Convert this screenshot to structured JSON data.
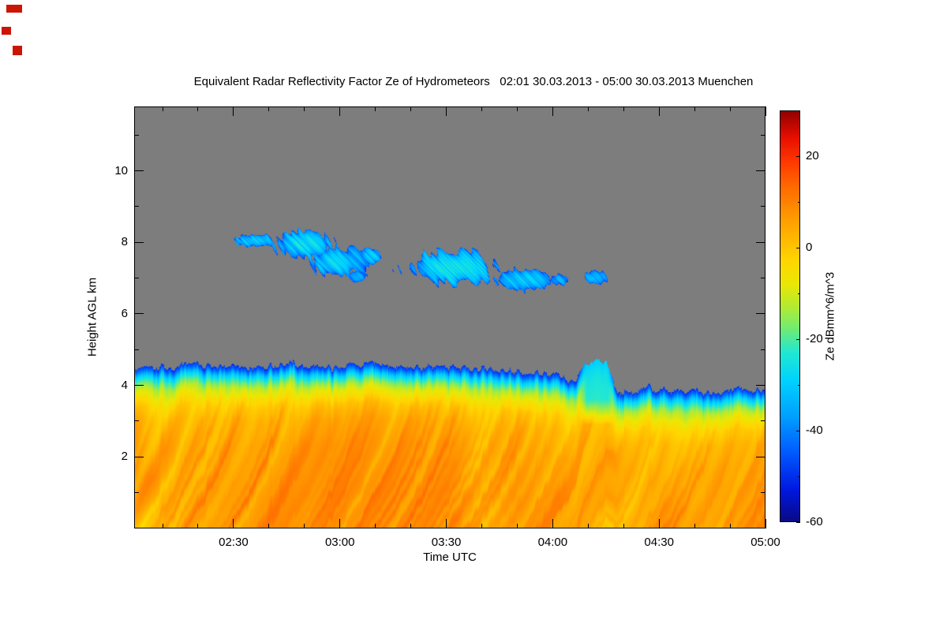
{
  "chart_data": {
    "type": "heatmap",
    "title": "Equivalent Radar Reflectivity Factor Ze of Hydrometeors   02:01 30.03.2013 - 05:00 30.03.2013 Muenchen",
    "xlabel": "Time UTC",
    "ylabel": "Height AGL km",
    "colorbar_label": "Ze dBmm^6/m^3",
    "x_range_hours": [
      2.033,
      5.0
    ],
    "y_range_km": [
      0,
      11.8
    ],
    "value_range_dB": [
      -60,
      30
    ],
    "background_color_rgb": [
      125,
      125,
      125
    ],
    "x_ticks": [
      {
        "t": 2.5,
        "label": "02:30"
      },
      {
        "t": 3.0,
        "label": "03:00"
      },
      {
        "t": 3.5,
        "label": "03:30"
      },
      {
        "t": 4.0,
        "label": "04:00"
      },
      {
        "t": 4.5,
        "label": "04:30"
      },
      {
        "t": 5.0,
        "label": "05:00"
      }
    ],
    "y_ticks": [
      2,
      4,
      6,
      8,
      10
    ],
    "y_minor_ticks": [
      1,
      3,
      5,
      7,
      9,
      11
    ],
    "colorbar_ticks": [
      20,
      0,
      -20,
      -40,
      -60
    ],
    "colorbar_minor_ticks": [
      10,
      -10,
      -30,
      -50
    ],
    "colormap": [
      [
        -60,
        [
          10,
          10,
          135
        ]
      ],
      [
        -53,
        [
          0,
          25,
          225
        ]
      ],
      [
        -45,
        [
          0,
          90,
          255
        ]
      ],
      [
        -37,
        [
          0,
          160,
          255
        ]
      ],
      [
        -29,
        [
          0,
          212,
          255
        ]
      ],
      [
        -23,
        [
          35,
          232,
          210
        ]
      ],
      [
        -18,
        [
          110,
          235,
          120
        ]
      ],
      [
        -13,
        [
          180,
          235,
          50
        ]
      ],
      [
        -8,
        [
          235,
          232,
          5
        ]
      ],
      [
        -3,
        [
          255,
          215,
          0
        ]
      ],
      [
        2,
        [
          255,
          185,
          0
        ]
      ],
      [
        8,
        [
          255,
          145,
          0
        ]
      ],
      [
        14,
        [
          255,
          100,
          0
        ]
      ],
      [
        19,
        [
          255,
          55,
          0
        ]
      ],
      [
        24,
        [
          232,
          15,
          0
        ]
      ],
      [
        30,
        [
          145,
          0,
          0
        ]
      ]
    ],
    "precip_layer": {
      "base_km": 0,
      "top_km_samples": [
        [
          2.03,
          4.45
        ],
        [
          2.1,
          4.55
        ],
        [
          2.2,
          4.5
        ],
        [
          2.3,
          4.6
        ],
        [
          2.4,
          4.5
        ],
        [
          2.5,
          4.55
        ],
        [
          2.6,
          4.5
        ],
        [
          2.7,
          4.55
        ],
        [
          2.8,
          4.6
        ],
        [
          2.9,
          4.5
        ],
        [
          3.0,
          4.5
        ],
        [
          3.05,
          4.65
        ],
        [
          3.1,
          4.55
        ],
        [
          3.2,
          4.6
        ],
        [
          3.3,
          4.55
        ],
        [
          3.4,
          4.5
        ],
        [
          3.5,
          4.55
        ],
        [
          3.6,
          4.5
        ],
        [
          3.7,
          4.45
        ],
        [
          3.8,
          4.4
        ],
        [
          3.9,
          4.35
        ],
        [
          4.0,
          4.3
        ],
        [
          4.05,
          4.2
        ],
        [
          4.1,
          4.1
        ],
        [
          4.15,
          4.55
        ],
        [
          4.2,
          4.8
        ],
        [
          4.25,
          4.7
        ],
        [
          4.3,
          3.9
        ],
        [
          4.35,
          3.8
        ],
        [
          4.4,
          3.9
        ],
        [
          4.45,
          3.95
        ],
        [
          4.5,
          3.85
        ],
        [
          4.55,
          3.9
        ],
        [
          4.6,
          3.8
        ],
        [
          4.65,
          3.85
        ],
        [
          4.7,
          3.8
        ],
        [
          4.75,
          3.85
        ],
        [
          4.8,
          3.8
        ],
        [
          4.85,
          3.9
        ],
        [
          4.9,
          3.85
        ],
        [
          4.95,
          3.9
        ],
        [
          5.0,
          3.85
        ]
      ],
      "profile_dB_by_depth": [
        [
          0,
          -50
        ],
        [
          0.12,
          -42
        ],
        [
          0.25,
          -30
        ],
        [
          0.42,
          -20
        ],
        [
          0.6,
          -12
        ],
        [
          0.85,
          -6
        ],
        [
          1.1,
          -1
        ],
        [
          1.5,
          3
        ],
        [
          2.2,
          5.5
        ],
        [
          3.5,
          7
        ],
        [
          5.5,
          7
        ]
      ]
    },
    "anomaly_updraft_tower": {
      "t0": 4.12,
      "t1": 4.3,
      "h_base": 2.9,
      "h_full": 3.6,
      "value": -26,
      "strength": 0.85
    },
    "cloud_patches": [
      {
        "cx": 2.6,
        "cy": 8.05,
        "rt": 0.085,
        "rh": 0.16,
        "v": -30
      },
      {
        "cx": 2.83,
        "cy": 7.95,
        "rt": 0.13,
        "rh": 0.36,
        "v": -27
      },
      {
        "cx": 2.98,
        "cy": 7.45,
        "rt": 0.12,
        "rh": 0.38,
        "v": -29
      },
      {
        "cx": 3.15,
        "cy": 7.62,
        "rt": 0.05,
        "rh": 0.18,
        "v": -32
      },
      {
        "cx": 3.09,
        "cy": 7.05,
        "rt": 0.035,
        "rh": 0.14,
        "v": -35
      },
      {
        "cx": 3.53,
        "cy": 7.3,
        "rt": 0.2,
        "rh": 0.42,
        "v": -27
      },
      {
        "cx": 3.86,
        "cy": 6.95,
        "rt": 0.135,
        "rh": 0.3,
        "v": -30
      },
      {
        "cx": 4.03,
        "cy": 6.95,
        "rt": 0.04,
        "rh": 0.14,
        "v": -34
      },
      {
        "cx": 4.2,
        "cy": 7.02,
        "rt": 0.055,
        "rh": 0.16,
        "v": -32
      }
    ],
    "corner_marks": {
      "color": "#cc1503",
      "rects": [
        {
          "x": 8,
          "y": 6,
          "w": 20,
          "h": 10
        },
        {
          "x": 2,
          "y": 34,
          "w": 12,
          "h": 10
        },
        {
          "x": 16,
          "y": 58,
          "w": 12,
          "h": 12
        }
      ]
    }
  }
}
